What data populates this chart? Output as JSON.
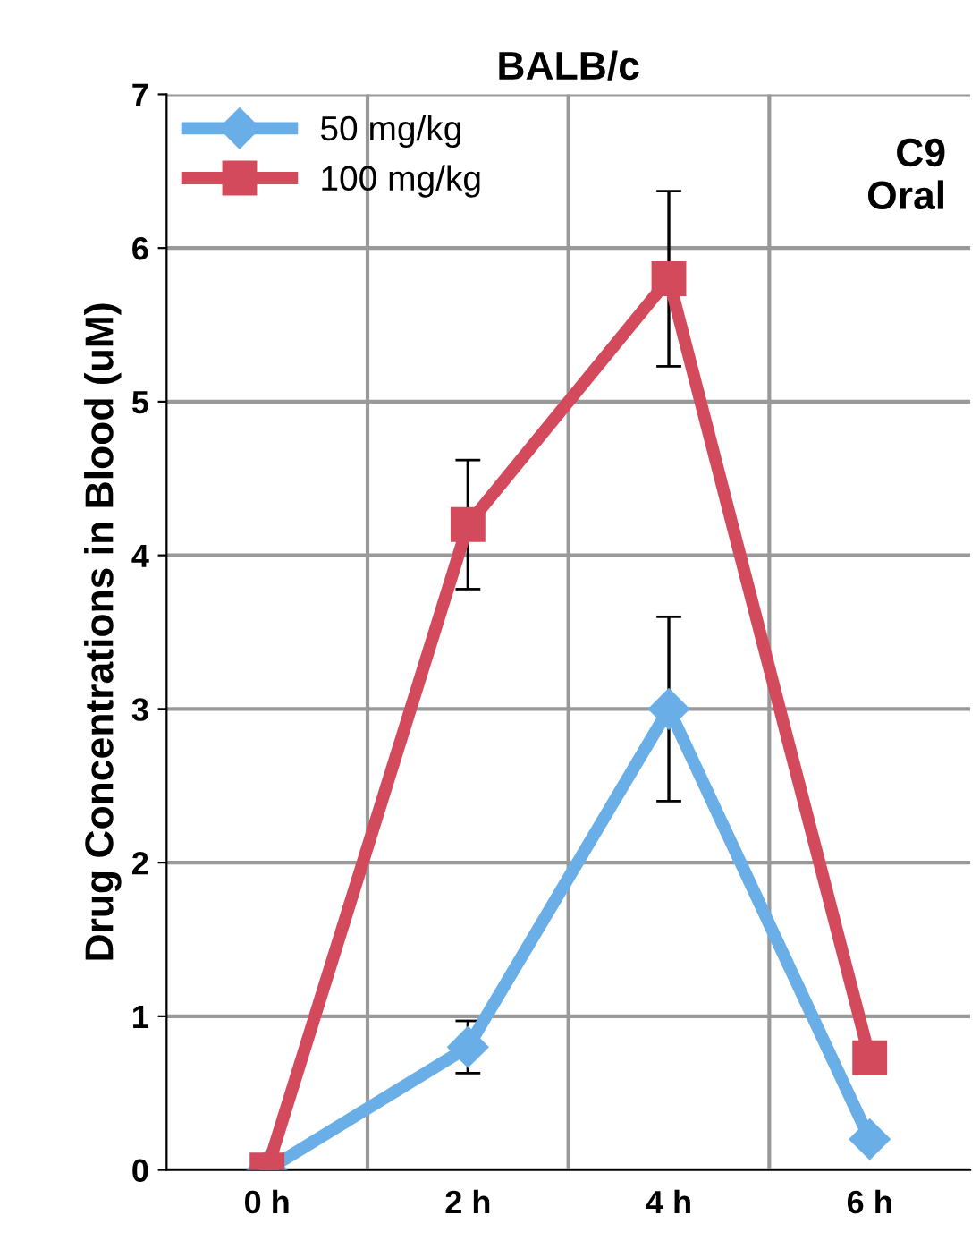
{
  "chart_data": {
    "type": "line",
    "title": "BALB/c",
    "ylabel": "Drug Concentrations in Blood (uM)",
    "categories": [
      "0 h",
      "2 h",
      "4 h",
      "6 h"
    ],
    "series": [
      {
        "name": "50 mg/kg",
        "color": "#6aaee8",
        "marker": "diamond",
        "values": [
          0,
          0.8,
          3.0,
          0.2
        ],
        "errors": [
          null,
          0.17,
          0.6,
          null
        ]
      },
      {
        "name": "100 mg/kg",
        "color": "#d34a5c",
        "marker": "square",
        "values": [
          0,
          4.2,
          5.8,
          0.73
        ],
        "errors": [
          null,
          0.42,
          0.57,
          null
        ]
      }
    ],
    "ylim": [
      0,
      7
    ],
    "yticks": [
      0,
      1,
      2,
      3,
      4,
      5,
      6,
      7
    ],
    "grid": true,
    "legend": "top left",
    "annotations": [
      "C9\nOral"
    ]
  }
}
